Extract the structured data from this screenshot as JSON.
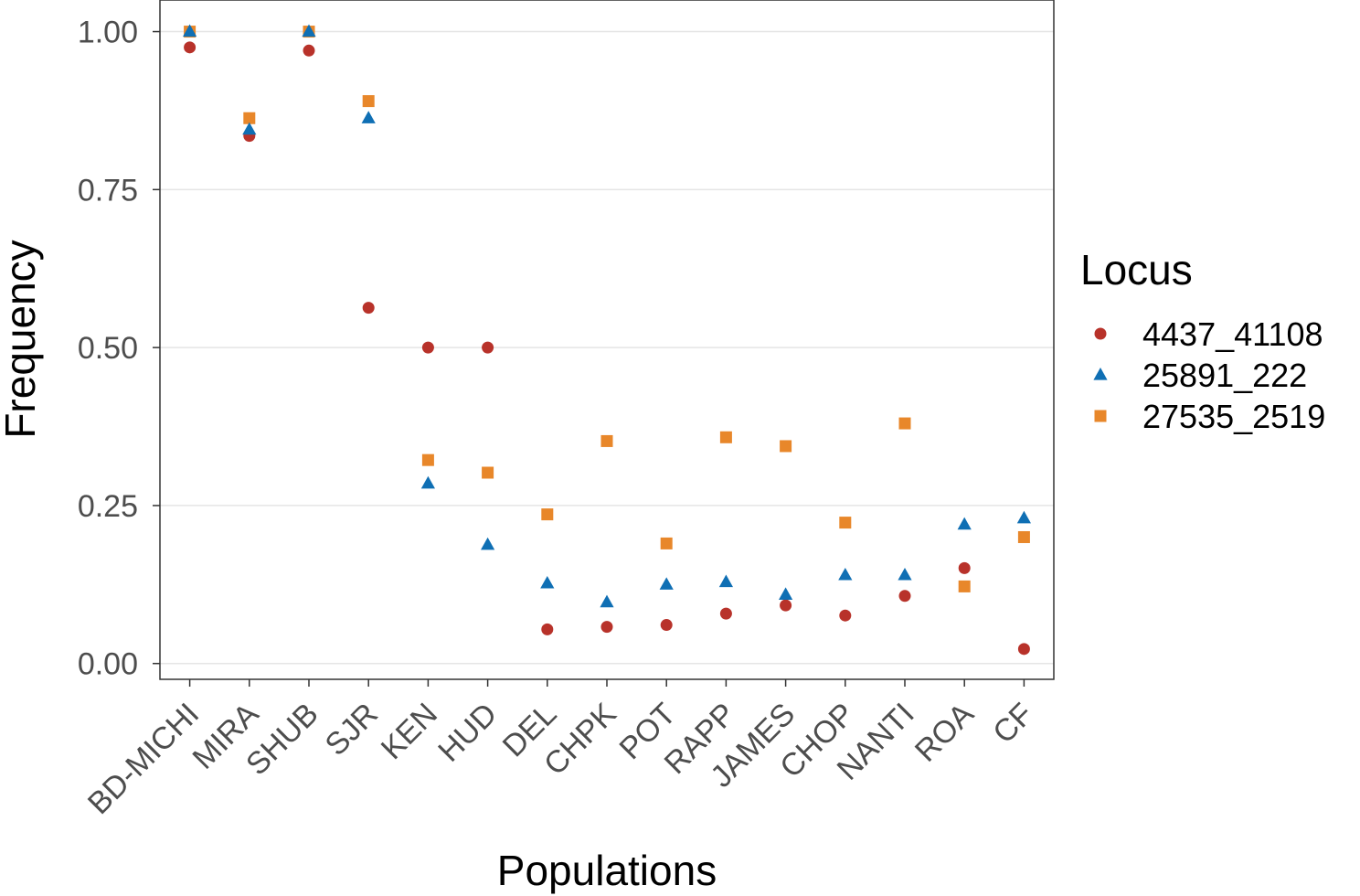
{
  "chart_data": {
    "type": "scatter",
    "xlabel": "Populations",
    "ylabel": "Frequency",
    "ylim": [
      -0.025,
      1.05
    ],
    "y_ticks": [
      "0.00",
      "0.25",
      "0.50",
      "0.75",
      "1.00"
    ],
    "categories": [
      "BD-MICHI",
      "MIRA",
      "SHUB",
      "SJR",
      "KEN",
      "HUD",
      "DEL",
      "CHPK",
      "POT",
      "RAPP",
      "JAMES",
      "CHOP",
      "NANTI",
      "ROA",
      "CF"
    ],
    "grid": "horizontal",
    "legend": {
      "title": "Locus",
      "placement": "right"
    },
    "series": [
      {
        "name": "4437_41108",
        "marker": "circle",
        "color": "#b8322a",
        "values": [
          0.975,
          0.835,
          0.97,
          0.563,
          0.5,
          0.5,
          0.054,
          0.058,
          0.061,
          0.079,
          0.092,
          0.076,
          0.107,
          0.151,
          0.023
        ]
      },
      {
        "name": "25891_222",
        "marker": "triangle",
        "color": "#0f6fb4",
        "values": [
          1.0,
          0.845,
          1.0,
          0.863,
          0.285,
          0.188,
          0.127,
          0.097,
          0.125,
          0.129,
          0.109,
          0.14,
          0.14,
          0.22,
          0.23
        ]
      },
      {
        "name": "27535_2519",
        "marker": "square",
        "color": "#e8872a",
        "values": [
          1.0,
          0.863,
          1.0,
          0.89,
          0.322,
          0.302,
          0.236,
          0.352,
          0.19,
          0.358,
          0.344,
          0.223,
          0.38,
          0.122,
          0.2
        ]
      }
    ]
  }
}
